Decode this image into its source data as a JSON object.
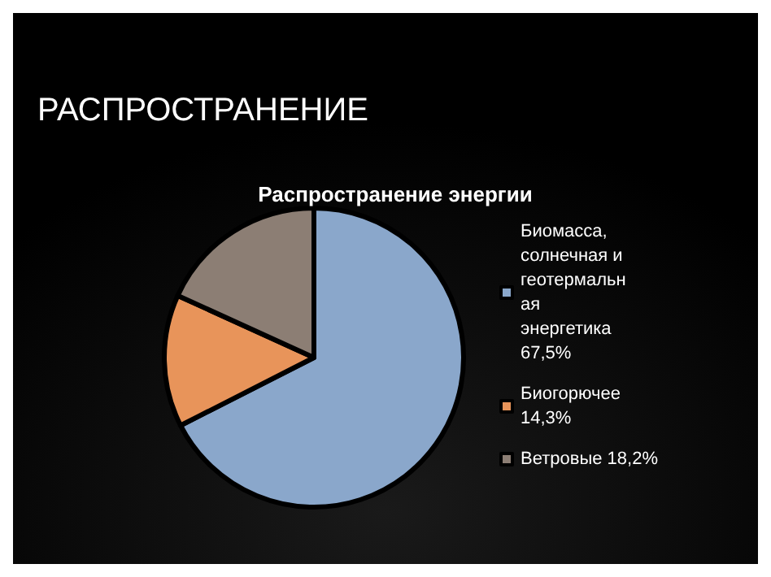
{
  "chart_data": {
    "type": "pie",
    "title": "РАСПРОСТРАНЕНИЕ",
    "subtitle": "Распространение энергии",
    "categories": [
      "Биомасса, солнечная и геотермальная энергетика 67,5%",
      "Биогорючее 14,3%",
      "Ветровые 18,2%"
    ],
    "values": [
      67.5,
      14.3,
      18.2
    ],
    "colors": [
      "#8aa7cb",
      "#e8945a",
      "#8c7e74"
    ],
    "legend": "right"
  }
}
